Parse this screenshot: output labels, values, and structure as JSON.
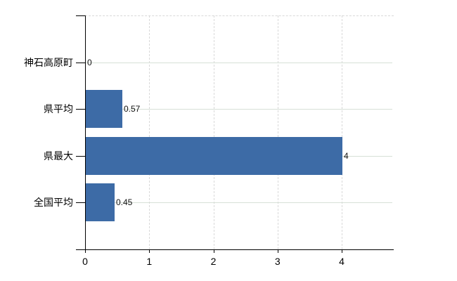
{
  "chart_data": {
    "type": "bar",
    "orientation": "horizontal",
    "title": "",
    "xlabel": "",
    "ylabel": "",
    "legend": null,
    "grid": "on",
    "categories": [
      "神石高原町",
      "県平均",
      "県最大",
      "全国平均"
    ],
    "values": [
      0,
      0.57,
      4,
      0.45
    ],
    "value_labels": [
      "0",
      "0.57",
      "4",
      "0.45"
    ],
    "x_ticks": [
      0,
      1,
      2,
      3,
      4
    ],
    "x_tick_labels": [
      "0",
      "1",
      "2",
      "3",
      "4"
    ],
    "xlim": [
      0,
      4.81
    ]
  },
  "colors": {
    "bar_fill": "#3d6ba6",
    "axis": "#000000",
    "vertical_gridline": "#d9d9d9",
    "horizontal_gridline": "#d7e0d7",
    "background": "#ffffff",
    "label_text": "#000000"
  }
}
